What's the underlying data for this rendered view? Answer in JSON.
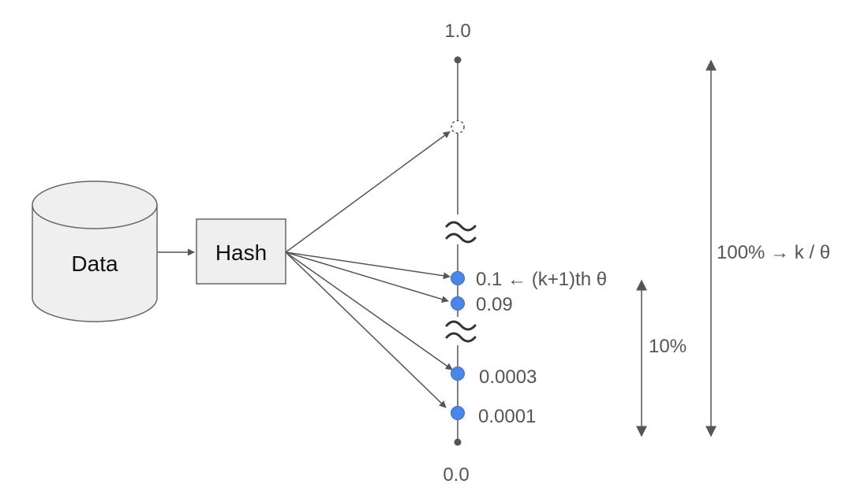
{
  "diagram": {
    "data_label": "Data",
    "hash_label": "Hash",
    "top_label": "1.0",
    "bottom_label": "0.0",
    "points": [
      {
        "label": "0.1 ← (k+1)th θ"
      },
      {
        "label": "0.09"
      },
      {
        "label": "0.0003"
      },
      {
        "label": "0.0001"
      }
    ],
    "span_small_label": "10%",
    "span_large_label": "100% → k / θ"
  },
  "colors": {
    "point_fill": "#4a86e8",
    "box_fill": "#efefef",
    "line": "#555555"
  }
}
